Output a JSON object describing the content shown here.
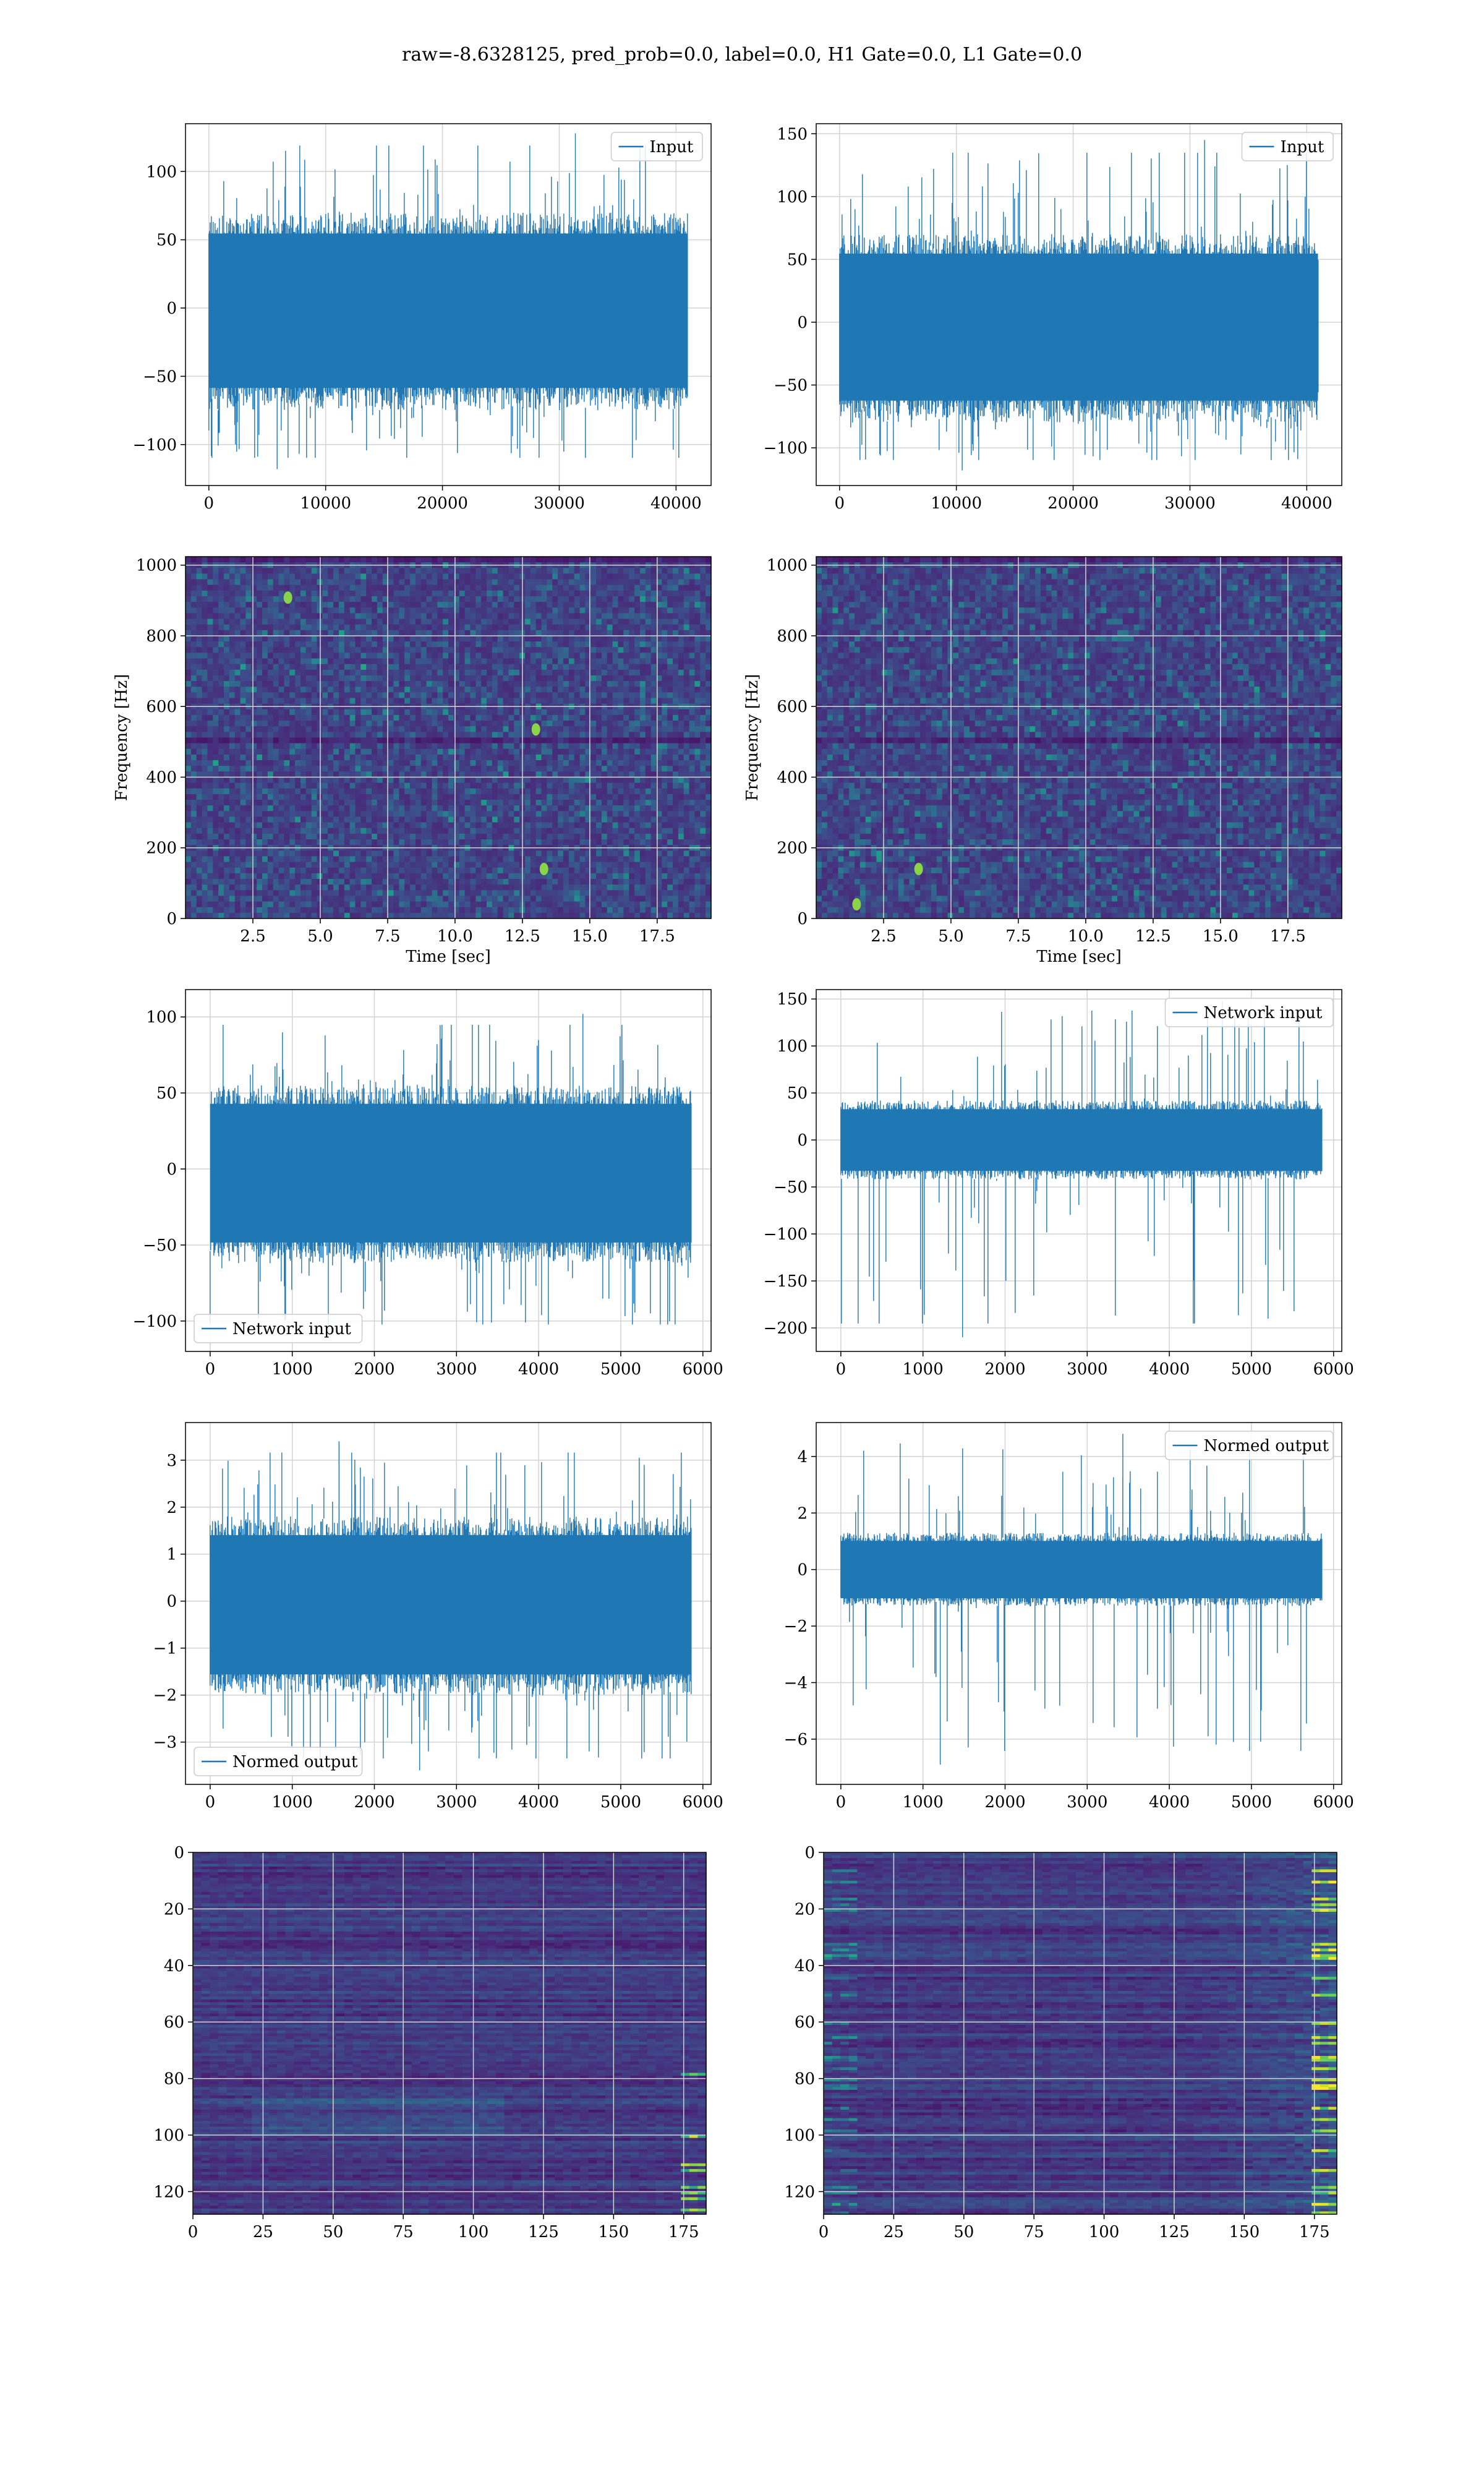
{
  "figure": {
    "suptitle": "raw=-8.6328125, pred_prob=0.0, label=0.0, H1 Gate=0.0, L1 Gate=0.0"
  },
  "colors": {
    "line": "#1f77b4",
    "grid": "#d3d3d3",
    "viridis": [
      "#440154",
      "#482878",
      "#3e4989",
      "#31688e",
      "#26828e",
      "#1f9e89",
      "#35b779",
      "#6ece58",
      "#b5de2b",
      "#fde725"
    ]
  },
  "chart_data": [
    {
      "id": "input-left",
      "type": "line",
      "legend": {
        "label": "Input",
        "loc": "upper right"
      },
      "xlim": [
        -2000,
        43000
      ],
      "ylim": [
        -130,
        135
      ],
      "xticks": [
        0,
        10000,
        20000,
        30000,
        40000
      ],
      "yticks": [
        -100,
        -50,
        0,
        50,
        100
      ],
      "grid": true,
      "series": [
        {
          "name": "Input",
          "n_samples": 40960,
          "x_range": [
            0,
            40960
          ],
          "envelope": [
            -75,
            70
          ],
          "y_extent": [
            -118,
            128
          ]
        }
      ]
    },
    {
      "id": "input-right",
      "type": "line",
      "legend": {
        "label": "Input",
        "loc": "upper right"
      },
      "xlim": [
        -2000,
        43000
      ],
      "ylim": [
        -130,
        158
      ],
      "xticks": [
        0,
        10000,
        20000,
        30000,
        40000
      ],
      "yticks": [
        -100,
        -50,
        0,
        50,
        100,
        150
      ],
      "grid": true,
      "series": [
        {
          "name": "Input",
          "n_samples": 40960,
          "x_range": [
            0,
            40960
          ],
          "envelope": [
            -80,
            70
          ],
          "y_extent": [
            -118,
            145
          ]
        }
      ]
    },
    {
      "id": "spec-left",
      "type": "heatmap",
      "xlim": [
        0,
        19.5
      ],
      "ylim": [
        0,
        1024
      ],
      "xticks": [
        2.5,
        5.0,
        7.5,
        10.0,
        12.5,
        15.0,
        17.5
      ],
      "yticks": [
        0,
        200,
        400,
        600,
        800,
        1000
      ],
      "xlabel": "Time [sec]",
      "ylabel": "Frequency [Hz]",
      "grid": true,
      "colormap": "viridis",
      "hot_spots": [
        {
          "t": 13.3,
          "f": 140
        },
        {
          "t": 13.0,
          "f": 535
        },
        {
          "t": 3.8,
          "f": 908
        }
      ]
    },
    {
      "id": "spec-right",
      "type": "heatmap",
      "xlim": [
        0,
        19.5
      ],
      "ylim": [
        0,
        1024
      ],
      "xticks": [
        2.5,
        5.0,
        7.5,
        10.0,
        12.5,
        15.0,
        17.5
      ],
      "yticks": [
        0,
        200,
        400,
        600,
        800,
        1000
      ],
      "xlabel": "Time [sec]",
      "ylabel": "Frequency [Hz]",
      "grid": true,
      "colormap": "viridis",
      "hot_spots": [
        {
          "t": 1.5,
          "f": 40
        },
        {
          "t": 3.8,
          "f": 140
        }
      ]
    },
    {
      "id": "network-left",
      "type": "line",
      "legend": {
        "label": "Network input",
        "loc": "lower left"
      },
      "xlim": [
        -300,
        6100
      ],
      "ylim": [
        -120,
        118
      ],
      "xticks": [
        0,
        1000,
        2000,
        3000,
        4000,
        5000,
        6000
      ],
      "yticks": [
        -100,
        -50,
        0,
        50,
        100
      ],
      "grid": true,
      "series": [
        {
          "name": "Network input",
          "n_samples": 5856,
          "x_range": [
            0,
            5856
          ],
          "envelope": [
            -62,
            55
          ],
          "y_extent": [
            -110,
            102
          ]
        }
      ]
    },
    {
      "id": "network-right",
      "type": "line",
      "legend": {
        "label": "Network input",
        "loc": "upper right"
      },
      "xlim": [
        -300,
        6100
      ],
      "ylim": [
        -225,
        160
      ],
      "xticks": [
        0,
        1000,
        2000,
        3000,
        4000,
        5000,
        6000
      ],
      "yticks": [
        -200,
        -150,
        -100,
        -50,
        0,
        50,
        100,
        150
      ],
      "grid": true,
      "series": [
        {
          "name": "Network input",
          "n_samples": 5856,
          "x_range": [
            0,
            5856
          ],
          "envelope": [
            -42,
            42
          ],
          "y_extent": [
            -210,
            148
          ]
        }
      ]
    },
    {
      "id": "normed-left",
      "type": "line",
      "legend": {
        "label": "Normed output",
        "loc": "lower left"
      },
      "xlim": [
        -300,
        6100
      ],
      "ylim": [
        -3.9,
        3.8
      ],
      "xticks": [
        0,
        1000,
        2000,
        3000,
        4000,
        5000,
        6000
      ],
      "yticks": [
        -3,
        -2,
        -1,
        0,
        1,
        2,
        3
      ],
      "grid": true,
      "series": [
        {
          "name": "Normed output",
          "n_samples": 5856,
          "x_range": [
            0,
            5856
          ],
          "envelope": [
            -2.0,
            1.8
          ],
          "y_extent": [
            -3.6,
            3.4
          ]
        }
      ]
    },
    {
      "id": "normed-right",
      "type": "line",
      "legend": {
        "label": "Normed output",
        "loc": "upper right"
      },
      "xlim": [
        -300,
        6100
      ],
      "ylim": [
        -7.6,
        5.2
      ],
      "xticks": [
        0,
        1000,
        2000,
        3000,
        4000,
        5000,
        6000
      ],
      "yticks": [
        -6,
        -4,
        -2,
        0,
        2,
        4
      ],
      "grid": true,
      "series": [
        {
          "name": "Normed output",
          "n_samples": 5856,
          "x_range": [
            0,
            5856
          ],
          "envelope": [
            -1.3,
            1.3
          ],
          "y_extent": [
            -6.9,
            4.8
          ]
        }
      ]
    },
    {
      "id": "features-left",
      "type": "heatmap",
      "xlim": [
        0,
        183
      ],
      "ylim": [
        128,
        0
      ],
      "xticks": [
        0,
        25,
        50,
        75,
        100,
        125,
        150,
        175
      ],
      "yticks": [
        0,
        20,
        40,
        60,
        80,
        100,
        120
      ],
      "grid": true,
      "colormap": "viridis",
      "shape": [
        128,
        183
      ]
    },
    {
      "id": "features-right",
      "type": "heatmap",
      "xlim": [
        0,
        183
      ],
      "ylim": [
        128,
        0
      ],
      "xticks": [
        0,
        25,
        50,
        75,
        100,
        125,
        150,
        175
      ],
      "yticks": [
        0,
        20,
        40,
        60,
        80,
        100,
        120
      ],
      "grid": true,
      "colormap": "viridis",
      "shape": [
        128,
        183
      ]
    }
  ]
}
